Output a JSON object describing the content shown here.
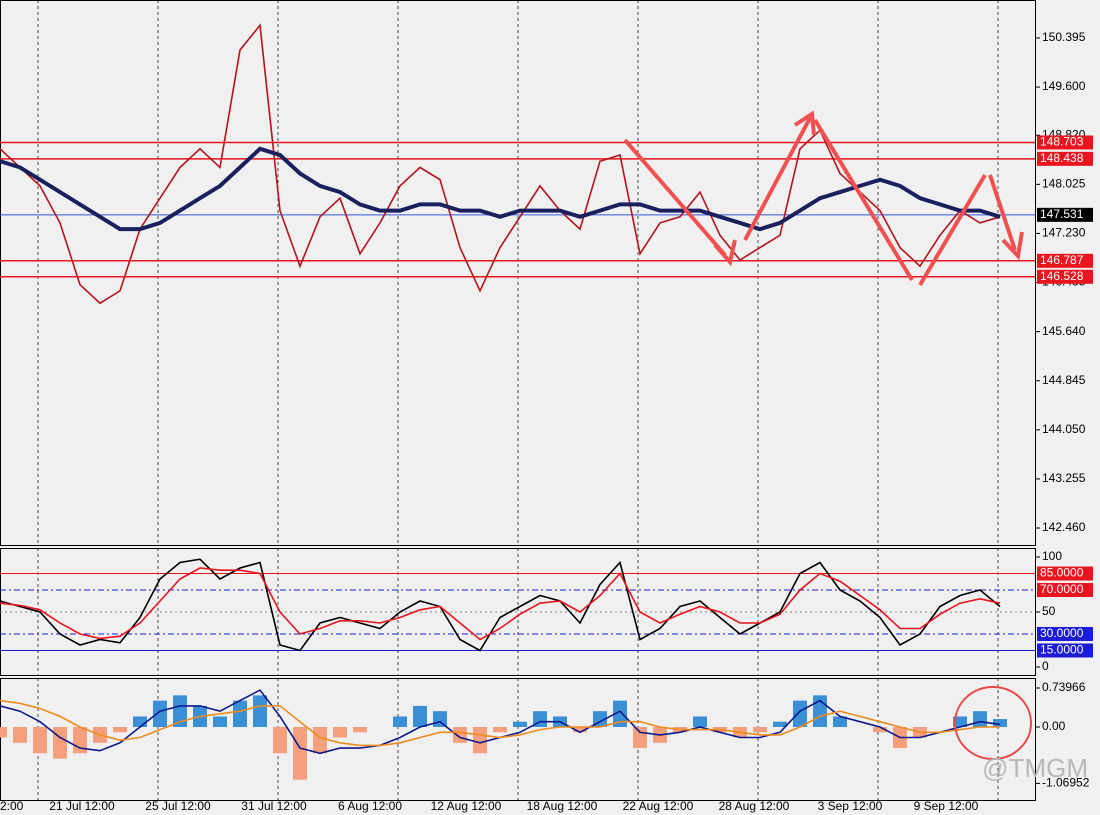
{
  "chart_data": [
    {
      "type": "line",
      "ylim": [
        142.185,
        151.01
      ],
      "yticks": [
        150.395,
        {
          "value": 149.6,
          "label": "149.600"
        },
        {
          "value": 148.82,
          "label": "148.820"
        },
        148.025,
        {
          "value": 147.23,
          "label": "147.230"
        },
        146.435,
        {
          "value": 145.64,
          "label": "145.640"
        },
        144.845,
        {
          "value": 144.05,
          "label": "144.050"
        },
        143.255,
        {
          "value": 142.46,
          "label": "142.460"
        }
      ],
      "levels": [
        {
          "value": 148.703,
          "color": "#e8141e"
        },
        {
          "value": 148.438,
          "color": "#e8141e"
        },
        {
          "value": 147.531,
          "color": "#000000"
        },
        {
          "value": 146.787,
          "color": "#e8141e"
        },
        {
          "value": 146.528,
          "color": "#e8141e"
        }
      ],
      "series": [
        {
          "name": "Price",
          "color": "#b5121b",
          "values": [
            148.6,
            148.3,
            148.0,
            147.4,
            146.4,
            146.1,
            146.3,
            147.3,
            147.8,
            148.3,
            148.6,
            148.3,
            150.2,
            150.6,
            147.6,
            146.7,
            147.5,
            147.8,
            146.9,
            147.4,
            148.0,
            148.3,
            148.1,
            147.0,
            146.3,
            147.0,
            147.5,
            148.0,
            147.6,
            147.3,
            148.4,
            148.5,
            146.9,
            147.4,
            147.5,
            147.9,
            147.2,
            146.8,
            147.0,
            147.2,
            148.6,
            148.9,
            148.2,
            147.9,
            147.6,
            147.0,
            146.7,
            147.2,
            147.6,
            147.4,
            147.5
          ]
        },
        {
          "name": "MA",
          "color": "#1a1f5e",
          "values": [
            148.4,
            148.3,
            148.1,
            147.9,
            147.7,
            147.5,
            147.3,
            147.3,
            147.4,
            147.6,
            147.8,
            148.0,
            148.3,
            148.6,
            148.5,
            148.2,
            148.0,
            147.9,
            147.7,
            147.6,
            147.6,
            147.7,
            147.7,
            147.6,
            147.6,
            147.5,
            147.6,
            147.6,
            147.6,
            147.5,
            147.6,
            147.7,
            147.7,
            147.6,
            147.6,
            147.6,
            147.5,
            147.4,
            147.3,
            147.4,
            147.6,
            147.8,
            147.9,
            148.0,
            148.1,
            148.0,
            147.8,
            147.7,
            147.6,
            147.6,
            147.5
          ]
        }
      ]
    },
    {
      "type": "line",
      "ylim": [
        -7.3,
        108.2
      ],
      "yticks": [
        0,
        50,
        100
      ],
      "levels": [
        {
          "value": 85,
          "label": "85.0000",
          "color": "#e8141e"
        },
        {
          "value": 70,
          "label": "70.0000",
          "color": "#e8141e"
        },
        {
          "value": 30,
          "label": "30.0000",
          "color": "#1c1cd6"
        },
        {
          "value": 15,
          "label": "15.0000",
          "color": "#1c1cd6"
        }
      ],
      "series": [
        {
          "name": "%K",
          "color": "#000000",
          "values": [
            60,
            55,
            50,
            30,
            20,
            25,
            22,
            45,
            80,
            95,
            98,
            80,
            90,
            95,
            20,
            15,
            40,
            45,
            40,
            35,
            50,
            60,
            55,
            25,
            15,
            45,
            55,
            65,
            60,
            40,
            75,
            95,
            25,
            35,
            55,
            60,
            45,
            30,
            40,
            50,
            85,
            95,
            70,
            60,
            45,
            20,
            30,
            55,
            65,
            70,
            55
          ]
        },
        {
          "name": "%D",
          "color": "#e8141e",
          "values": [
            58,
            56,
            52,
            40,
            30,
            26,
            28,
            40,
            60,
            80,
            90,
            88,
            88,
            85,
            50,
            30,
            35,
            42,
            42,
            40,
            45,
            52,
            55,
            40,
            25,
            35,
            48,
            58,
            60,
            50,
            65,
            85,
            50,
            40,
            48,
            55,
            50,
            40,
            40,
            48,
            70,
            85,
            78,
            65,
            52,
            35,
            35,
            48,
            58,
            62,
            58
          ]
        }
      ]
    },
    {
      "type": "macd",
      "ylim": [
        -1.385,
        0.9294
      ],
      "yticks": [
        0.73966,
        {
          "value": 0,
          "label": "0.00"
        },
        -1.06952
      ],
      "histogram": {
        "pos_color": "#3a8fd6",
        "neg_color": "#f4a07e",
        "values": [
          -0.2,
          -0.3,
          -0.5,
          -0.6,
          -0.5,
          -0.3,
          -0.1,
          0.2,
          0.5,
          0.6,
          0.4,
          0.2,
          0.5,
          0.6,
          -0.5,
          -1.0,
          -0.5,
          -0.2,
          -0.1,
          0.0,
          0.2,
          0.4,
          0.3,
          -0.3,
          -0.5,
          -0.1,
          0.1,
          0.3,
          0.2,
          -0.1,
          0.3,
          0.5,
          -0.4,
          -0.3,
          -0.1,
          0.2,
          -0.1,
          -0.2,
          -0.1,
          0.1,
          0.5,
          0.6,
          0.2,
          0.0,
          -0.1,
          -0.4,
          -0.2,
          0.0,
          0.2,
          0.3,
          0.15
        ]
      },
      "series": [
        {
          "name": "MACD",
          "color": "#0c1a8c",
          "values": [
            0.4,
            0.3,
            0.1,
            -0.2,
            -0.4,
            -0.45,
            -0.3,
            0.0,
            0.3,
            0.4,
            0.4,
            0.3,
            0.5,
            0.7,
            0.2,
            -0.4,
            -0.5,
            -0.4,
            -0.4,
            -0.35,
            -0.2,
            0.0,
            0.1,
            -0.2,
            -0.3,
            -0.2,
            -0.1,
            0.1,
            0.1,
            -0.1,
            0.1,
            0.3,
            -0.1,
            -0.15,
            -0.1,
            0.0,
            -0.1,
            -0.2,
            -0.2,
            -0.1,
            0.3,
            0.5,
            0.2,
            0.1,
            0.0,
            -0.2,
            -0.2,
            -0.1,
            0.0,
            0.1,
            0.05
          ]
        },
        {
          "name": "Signal",
          "color": "#f08a1c",
          "values": [
            0.5,
            0.45,
            0.35,
            0.2,
            0.0,
            -0.15,
            -0.25,
            -0.2,
            -0.05,
            0.1,
            0.2,
            0.25,
            0.3,
            0.4,
            0.4,
            0.1,
            -0.2,
            -0.3,
            -0.35,
            -0.35,
            -0.3,
            -0.2,
            -0.1,
            -0.1,
            -0.15,
            -0.2,
            -0.15,
            -0.05,
            0.0,
            0.0,
            0.0,
            0.1,
            0.1,
            0.0,
            -0.05,
            -0.05,
            -0.05,
            -0.1,
            -0.15,
            -0.15,
            0.0,
            0.2,
            0.3,
            0.2,
            0.1,
            0.0,
            -0.1,
            -0.1,
            -0.05,
            0.0,
            0.0
          ]
        }
      ]
    }
  ],
  "time_labels": [
    "2:00",
    "21 Jul 12:00",
    "25 Jul 12:00",
    "31 Jul 12:00",
    "6 Aug 12:00",
    "12 Aug 12:00",
    "18 Aug 12:00",
    "22 Aug 12:00",
    "28 Aug 12:00",
    "3 Sep 12:00",
    "9 Sep 12:00"
  ],
  "watermark": "@TMGM"
}
